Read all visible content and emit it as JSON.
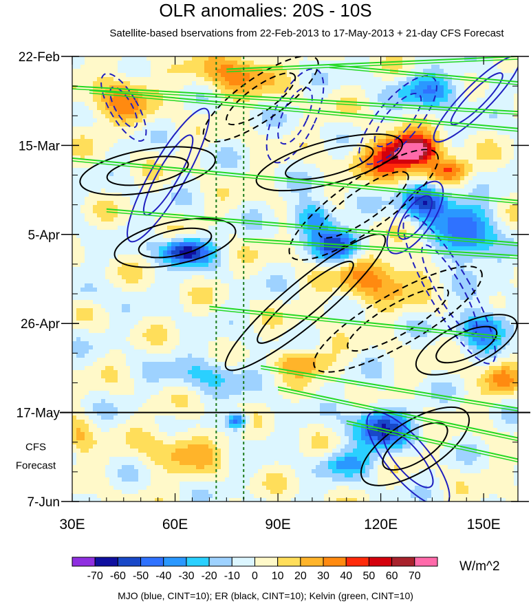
{
  "chart_data": {
    "type": "heatmap",
    "title": "OLR anomalies: 20S - 10S",
    "subtitle": "Satellite-based bservations from 22-Feb-2013 to 17-May-2013 + 21-day CFS Forecast",
    "x_tick_labels": [
      "30E",
      "60E",
      "90E",
      "120E",
      "150E"
    ],
    "x_ticks": [
      30,
      60,
      90,
      120,
      150
    ],
    "xlim": [
      30,
      160
    ],
    "y_tick_labels": [
      "22-Feb",
      "15-Mar",
      "5-Apr",
      "26-Apr",
      "17-May",
      "7-Jun"
    ],
    "y_ticks_days": [
      0,
      21,
      42,
      63,
      84,
      105
    ],
    "ylim_days": [
      0,
      105
    ],
    "forecast_start_day": 84,
    "forecast_label": [
      "CFS",
      "Forecast"
    ],
    "reference_longitudes": [
      72,
      80
    ],
    "colorbar": {
      "levels": [
        "-70",
        "-60",
        "-50",
        "-40",
        "-30",
        "-20",
        "-10",
        "0",
        "10",
        "20",
        "30",
        "40",
        "50",
        "60",
        "70"
      ],
      "colors": [
        "#8f2fe0",
        "#10109f",
        "#1848c8",
        "#2f72ff",
        "#2a98ff",
        "#2ad0ff",
        "#9ed2ff",
        "#dcf6ff",
        "#fff9c9",
        "#ffde5a",
        "#ffb42a",
        "#ff8a10",
        "#ff2a0a",
        "#d4000c",
        "#a8222c",
        "#ff6aaa"
      ],
      "units": "W/m^2"
    },
    "colors": {
      "mjo": "#1f1fbf",
      "er": "#000000",
      "kelvin": "#22d922",
      "reference_line": "#1a7a1a"
    },
    "contour_legend": "MJO (blue, CINT=10); ER (black, CINT=10); Kelvin (green, CINT=10)",
    "features": {
      "mjo": [
        {
          "lon": 125,
          "day": 15,
          "rlon": 6,
          "rday": 13,
          "angle": 40,
          "dash": true
        },
        {
          "lon": 58,
          "day": 28,
          "rlon": 5,
          "rday": 18,
          "angle": 30,
          "dash": false
        },
        {
          "lon": 95,
          "day": 14,
          "rlon": 6,
          "rday": 12,
          "angle": 25,
          "dash": true
        },
        {
          "lon": 140,
          "day": 55,
          "rlon": 6,
          "rday": 20,
          "angle": -30,
          "dash": true
        },
        {
          "lon": 128,
          "day": 95,
          "rlon": 6,
          "rday": 14,
          "angle": -40,
          "dash": false
        },
        {
          "lon": 45,
          "day": 12,
          "rlon": 4,
          "rday": 9,
          "angle": -30,
          "dash": true
        },
        {
          "lon": 148,
          "day": 10,
          "rlon": 4,
          "rday": 14,
          "angle": 45,
          "dash": false
        },
        {
          "lon": 130,
          "day": 38,
          "rlon": 5,
          "rday": 10,
          "angle": 35,
          "dash": false
        }
      ],
      "er": [
        {
          "lon": 60,
          "day": 44,
          "rlon": 18,
          "rday": 5,
          "angle": -12,
          "dash": false
        },
        {
          "lon": 52,
          "day": 27,
          "rlon": 20,
          "rday": 5,
          "angle": -10,
          "dash": false
        },
        {
          "lon": 98,
          "day": 58,
          "rlon": 30,
          "rday": 5,
          "angle": -40,
          "dash": false
        },
        {
          "lon": 115,
          "day": 35,
          "rlon": 26,
          "rday": 6,
          "angle": -35,
          "dash": true
        },
        {
          "lon": 130,
          "day": 92,
          "rlon": 18,
          "rday": 6,
          "angle": -32,
          "dash": false
        },
        {
          "lon": 125,
          "day": 62,
          "rlon": 28,
          "rday": 6,
          "angle": -30,
          "dash": true
        },
        {
          "lon": 105,
          "day": 25,
          "rlon": 22,
          "rday": 5,
          "angle": -15,
          "dash": false
        },
        {
          "lon": 85,
          "day": 10,
          "rlon": 20,
          "rday": 5,
          "angle": -35,
          "dash": true
        },
        {
          "lon": 145,
          "day": 68,
          "rlon": 16,
          "rday": 5,
          "angle": -25,
          "dash": false
        }
      ],
      "kelvin_lines": [
        [
          30,
          7,
          160,
          13
        ],
        [
          30,
          24,
          160,
          34
        ],
        [
          40,
          36,
          160,
          44
        ],
        [
          80,
          43,
          160,
          47
        ],
        [
          70,
          59,
          155,
          66
        ],
        [
          85,
          73,
          160,
          83
        ],
        [
          90,
          78,
          160,
          90
        ],
        [
          110,
          86,
          160,
          95
        ],
        [
          75,
          3,
          160,
          0
        ],
        [
          35,
          8,
          160,
          17
        ],
        [
          105,
          2,
          160,
          6
        ]
      ],
      "blobs": [
        {
          "lon": 125,
          "day": 24,
          "rlon": 10,
          "rday": 5,
          "val": 52
        },
        {
          "lon": 130,
          "day": 22,
          "rlon": 6,
          "rday": 3,
          "val": 62
        },
        {
          "lon": 63,
          "day": 46,
          "rlon": 7,
          "rday": 3,
          "val": -68
        },
        {
          "lon": 120,
          "day": 88,
          "rlon": 8,
          "rday": 5,
          "val": -55
        },
        {
          "lon": 133,
          "day": 34,
          "rlon": 7,
          "rday": 4,
          "val": -62
        },
        {
          "lon": 108,
          "day": 45,
          "rlon": 7,
          "rday": 4,
          "val": -55
        },
        {
          "lon": 44,
          "day": 10,
          "rlon": 10,
          "rday": 6,
          "val": 28
        },
        {
          "lon": 78,
          "day": 4,
          "rlon": 10,
          "rday": 5,
          "val": 35
        },
        {
          "lon": 118,
          "day": 52,
          "rlon": 12,
          "rday": 6,
          "val": 34
        },
        {
          "lon": 145,
          "day": 42,
          "rlon": 8,
          "rday": 7,
          "val": -48
        },
        {
          "lon": 150,
          "day": 64,
          "rlon": 7,
          "rday": 4,
          "val": -52
        },
        {
          "lon": 70,
          "day": 75,
          "rlon": 12,
          "rday": 4,
          "val": -22
        },
        {
          "lon": 110,
          "day": 96,
          "rlon": 8,
          "rday": 3,
          "val": -28
        },
        {
          "lon": 62,
          "day": 93,
          "rlon": 10,
          "rday": 5,
          "val": 24
        },
        {
          "lon": 97,
          "day": 72,
          "rlon": 8,
          "rday": 3,
          "val": 30
        },
        {
          "lon": 135,
          "day": 8,
          "rlon": 10,
          "rday": 4,
          "val": -35
        },
        {
          "lon": 140,
          "day": 27,
          "rlon": 6,
          "rday": 3,
          "val": 38
        },
        {
          "lon": 100,
          "day": 38,
          "rlon": 6,
          "rday": 4,
          "val": -40
        },
        {
          "lon": 155,
          "day": 76,
          "rlon": 5,
          "rday": 4,
          "val": 30
        },
        {
          "lon": 32,
          "day": 90,
          "rlon": 4,
          "rday": 4,
          "val": 22
        },
        {
          "lon": 78,
          "day": 86,
          "rlon": 3,
          "rday": 2,
          "val": -52
        },
        {
          "lon": 35,
          "day": 56,
          "rlon": 5,
          "rday": 3,
          "val": -12
        }
      ]
    }
  }
}
